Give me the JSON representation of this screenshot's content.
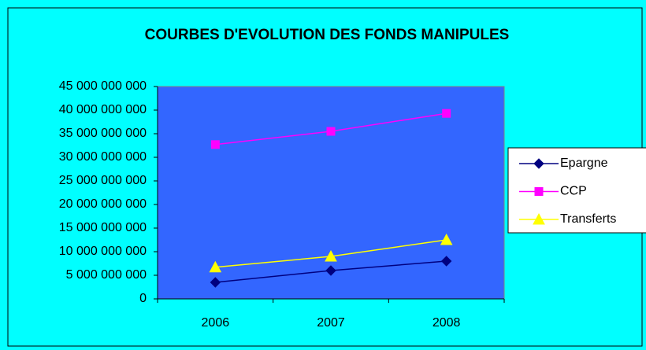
{
  "chart_data": {
    "type": "line",
    "title": "COURBES D'EVOLUTION DES FONDS MANIPULES",
    "categories": [
      "2006",
      "2007",
      "2008"
    ],
    "series": [
      {
        "name": "Epargne",
        "color": "#000080",
        "marker": "diamond",
        "values": [
          3500000000,
          6000000000,
          8000000000
        ]
      },
      {
        "name": "CCP",
        "color": "#ff00ff",
        "marker": "square",
        "values": [
          32700000000,
          35500000000,
          39300000000
        ]
      },
      {
        "name": "Transferts",
        "color": "#ffff00",
        "marker": "triangle",
        "values": [
          6700000000,
          9000000000,
          12500000000
        ]
      }
    ],
    "ylim": [
      0,
      45000000000
    ],
    "yticks": [
      0,
      {
        "value": 5000000000,
        "label": "5 000 000 000"
      },
      {
        "value": 10000000000,
        "label": "10 000 000 000"
      },
      {
        "value": 15000000000,
        "label": "15 000 000 000"
      },
      {
        "value": 20000000000,
        "label": "20 000 000 000"
      },
      {
        "value": 25000000000,
        "label": "25 000 000 000"
      },
      {
        "value": 30000000000,
        "label": "30 000 000 000"
      },
      {
        "value": 35000000000,
        "label": "35 000 000 000"
      },
      {
        "value": 40000000000,
        "label": "40 000 000 000"
      },
      {
        "value": 45000000000,
        "label": "45 000 000 000"
      }
    ],
    "grid": false,
    "legend": "right",
    "background": "#00ffff",
    "plot_background": "#3366ff"
  }
}
